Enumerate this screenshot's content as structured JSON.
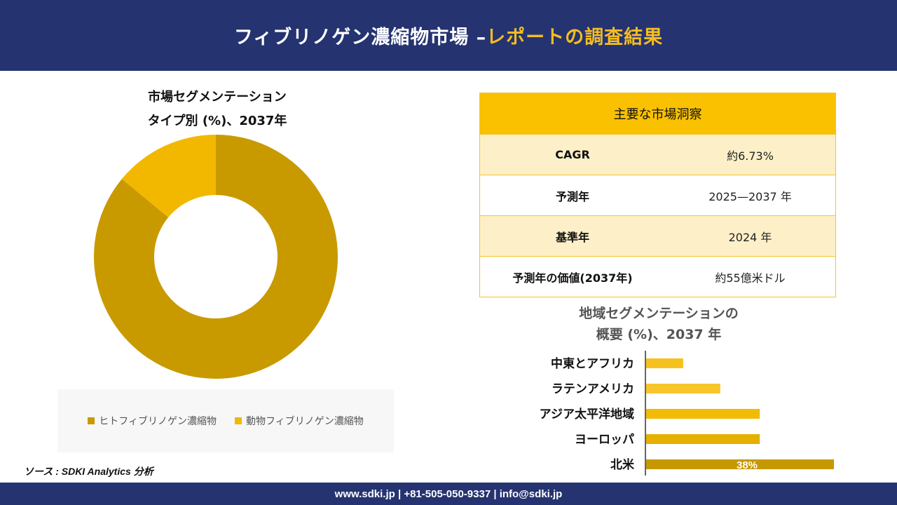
{
  "header": {
    "title_main": "フィブリノゲン濃縮物市場 –",
    "title_accent": "レポートの調査結果"
  },
  "pie_title": {
    "line1": "市場セグメンテーション",
    "line2": "タイプ別 (%)、2037年"
  },
  "insights": {
    "heading": "主要な市場洞察",
    "rows": [
      {
        "label": "CAGR",
        "value": "約6.73%"
      },
      {
        "label": "予測年",
        "value": "2025—2037 年"
      },
      {
        "label": "基準年",
        "value": "2024 年"
      },
      {
        "label": "予測年の価値(2037年)",
        "value": "約55億米ドル"
      }
    ]
  },
  "bar_title": {
    "line1": "地域セグメンテーションの",
    "line2": "概要 (%)、2037 年"
  },
  "source": "ソース : SDKI Analytics 分析",
  "footer": {
    "contact": "www.sdki.jp | +81-505-050-9337 | info@sdki.jp"
  },
  "colors": {
    "navy": "#253370",
    "gold": "#f5bd1f",
    "dark_gold": "#c89a00",
    "yellow": "#f2b800",
    "light_yellow": "#fdf0c8"
  },
  "chart_data": [
    {
      "type": "pie",
      "variant": "donut",
      "labels": [
        "ヒトフィブリノゲン濃縮物",
        "動物フィブリノゲン濃縮物"
      ],
      "values": [
        86,
        14
      ],
      "colors": [
        "#c89a00",
        "#f2b800"
      ],
      "legend_position": "bottom"
    },
    {
      "type": "bar",
      "orientation": "horizontal",
      "categories": [
        "中東とアフリカ",
        "ラテンアメリカ",
        "アジア太平洋地域",
        "ヨーロッパ",
        "北米"
      ],
      "values": [
        7.5,
        15,
        23,
        23,
        38
      ],
      "colors": [
        "#f6c11c",
        "#f8c62a",
        "#f2bb05",
        "#e6b000",
        "#c69800"
      ],
      "data_labels": [
        "",
        "",
        "",
        "",
        "38%"
      ]
    }
  ]
}
